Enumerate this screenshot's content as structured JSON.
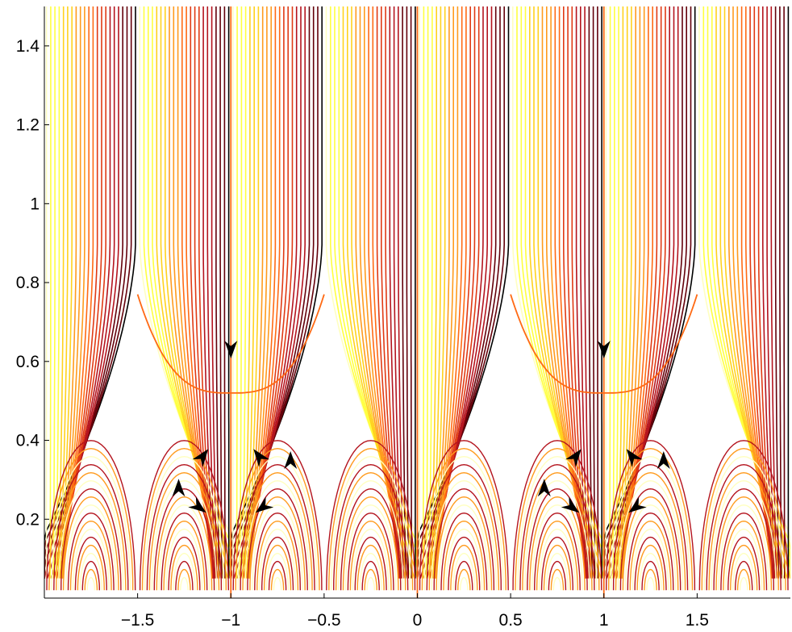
{
  "chart_data": {
    "type": "line",
    "title": "",
    "xlabel": "",
    "ylabel": "",
    "xlim": [
      -2,
      2
    ],
    "ylim": [
      0,
      1.5
    ],
    "grid": false,
    "legend": "none",
    "x_ticks": [
      -1.5,
      -1,
      -0.5,
      0,
      0.5,
      1,
      1.5
    ],
    "x_tick_labels": [
      "−1.5",
      "−1",
      "−0.5",
      "0",
      "0.5",
      "1",
      "1.5"
    ],
    "y_ticks": [
      0.2,
      0.4,
      0.6,
      0.8,
      1,
      1.2,
      1.4
    ],
    "y_tick_labels": [
      "0.2",
      "0.4",
      "0.6",
      "0.8",
      "1",
      "1.2",
      "1.4"
    ],
    "colormap": [
      "#ffffc0",
      "#ffff40",
      "#ffd21e",
      "#ff9b1e",
      "#ff6a14",
      "#e03a14",
      "#b4141e",
      "#64000a",
      "#000000"
    ],
    "vertical_lines": [
      {
        "x": -1,
        "color": "#ff6a14"
      },
      {
        "x": 0,
        "color": "#ff6a14"
      },
      {
        "x": 1,
        "color": "#ff6a14"
      }
    ],
    "saddle_points": [
      {
        "x": -1,
        "y": 0.52
      },
      {
        "x": 1,
        "y": 0.52
      }
    ],
    "arrows": [
      {
        "x": -1,
        "y": 0.63,
        "direction": "down"
      },
      {
        "x": 1,
        "y": 0.63,
        "direction": "down"
      },
      {
        "x": -1.15,
        "y": 0.36,
        "direction": "up-right"
      },
      {
        "x": -0.85,
        "y": 0.36,
        "direction": "up-left"
      },
      {
        "x": 0.85,
        "y": 0.36,
        "direction": "up-right"
      },
      {
        "x": 1.15,
        "y": 0.36,
        "direction": "up-left"
      },
      {
        "x": -1.28,
        "y": 0.28,
        "direction": "up"
      },
      {
        "x": -0.68,
        "y": 0.35,
        "direction": "up"
      },
      {
        "x": 0.68,
        "y": 0.28,
        "direction": "up"
      },
      {
        "x": 1.32,
        "y": 0.35,
        "direction": "up"
      },
      {
        "x": -1.17,
        "y": 0.23,
        "direction": "down-right"
      },
      {
        "x": -0.83,
        "y": 0.23,
        "direction": "down-left"
      },
      {
        "x": 0.83,
        "y": 0.23,
        "direction": "down-right"
      },
      {
        "x": 1.17,
        "y": 0.23,
        "direction": "down-left"
      }
    ]
  }
}
